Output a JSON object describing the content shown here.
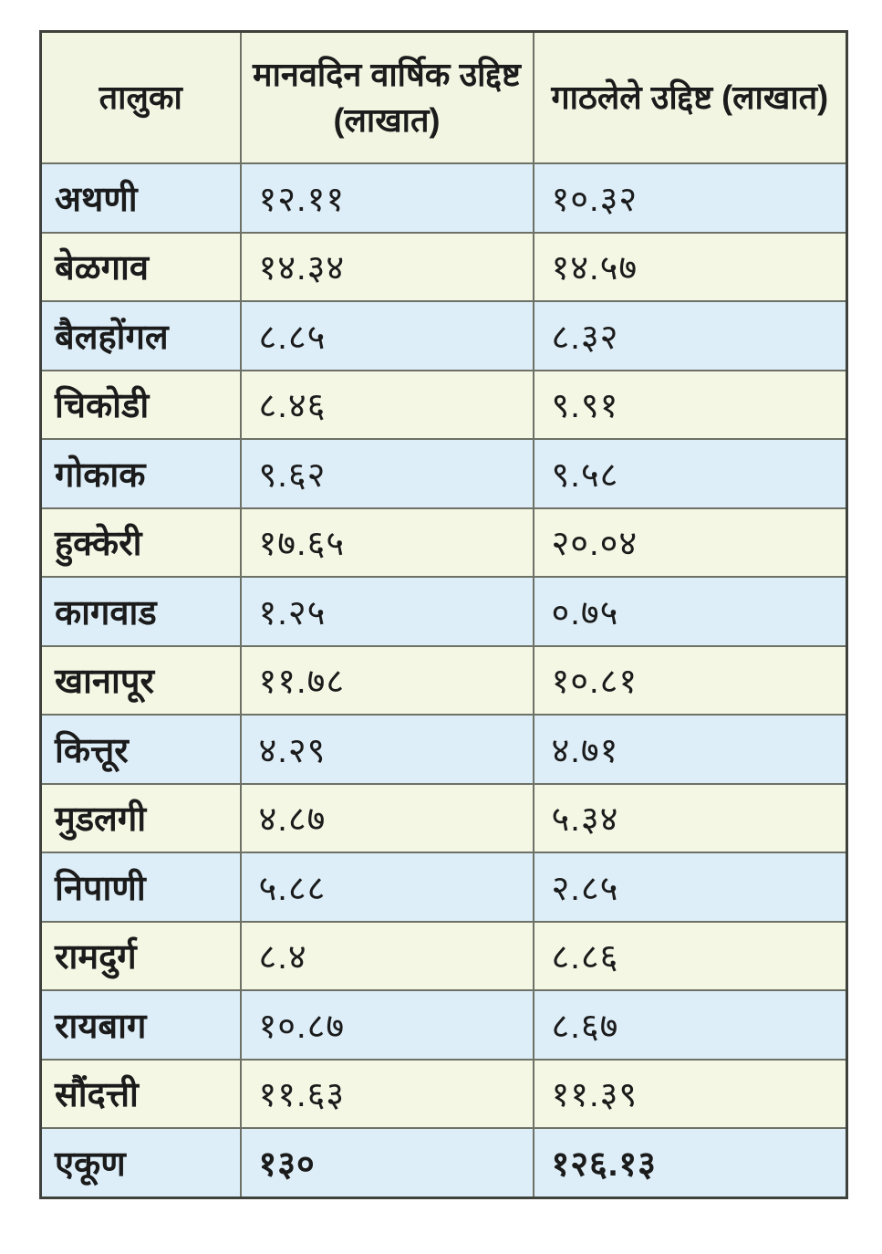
{
  "page": {
    "background_color": "#ffffff",
    "description_colors": {
      "row_blue": "#ddeef8",
      "row_cream": "#f5f7e5",
      "header_cream": "#f3f5e3",
      "grid_border": "#6d7166",
      "outer_border": "#3f423c",
      "text": "#1b1b1b"
    }
  },
  "table": {
    "columns": [
      {
        "label": "तालुका"
      },
      {
        "label": "मानवदिन वार्षिक उद्दिष्ट (लाखात)"
      },
      {
        "label": "गाठलेले उद्दिष्ट (लाखात)"
      }
    ],
    "rows": [
      {
        "taluka": "अथणी",
        "annual_target": "१२.११",
        "achieved": "१०.३२"
      },
      {
        "taluka": "बेळगाव",
        "annual_target": "१४.३४",
        "achieved": "१४.५७"
      },
      {
        "taluka": "बैलहोंगल",
        "annual_target": "८.८५",
        "achieved": "८.३२"
      },
      {
        "taluka": "चिकोडी",
        "annual_target": "८.४६",
        "achieved": "९.९१"
      },
      {
        "taluka": "गोकाक",
        "annual_target": "९.६२",
        "achieved": "९.५८"
      },
      {
        "taluka": "हुक्केरी",
        "annual_target": "१७.६५",
        "achieved": "२०.०४"
      },
      {
        "taluka": "कागवाड",
        "annual_target": "१.२५",
        "achieved": "०.७५"
      },
      {
        "taluka": "खानापूर",
        "annual_target": "११.७८",
        "achieved": "१०.८१"
      },
      {
        "taluka": "कित्तूर",
        "annual_target": "४.२९",
        "achieved": "४.७१"
      },
      {
        "taluka": "मुडलगी",
        "annual_target": "४.८७",
        "achieved": "५.३४"
      },
      {
        "taluka": "निपाणी",
        "annual_target": "५.८८",
        "achieved": "२.८५"
      },
      {
        "taluka": "रामदुर्ग",
        "annual_target": "८.४",
        "achieved": "८.८६"
      },
      {
        "taluka": "रायबाग",
        "annual_target": "१०.८७",
        "achieved": "८.६७"
      },
      {
        "taluka": "सौंदत्ती",
        "annual_target": "११.६३",
        "achieved": "११.३९"
      },
      {
        "taluka": "एकूण",
        "annual_target": "१३०",
        "achieved": "१२६.१३",
        "is_total": true
      }
    ]
  }
}
